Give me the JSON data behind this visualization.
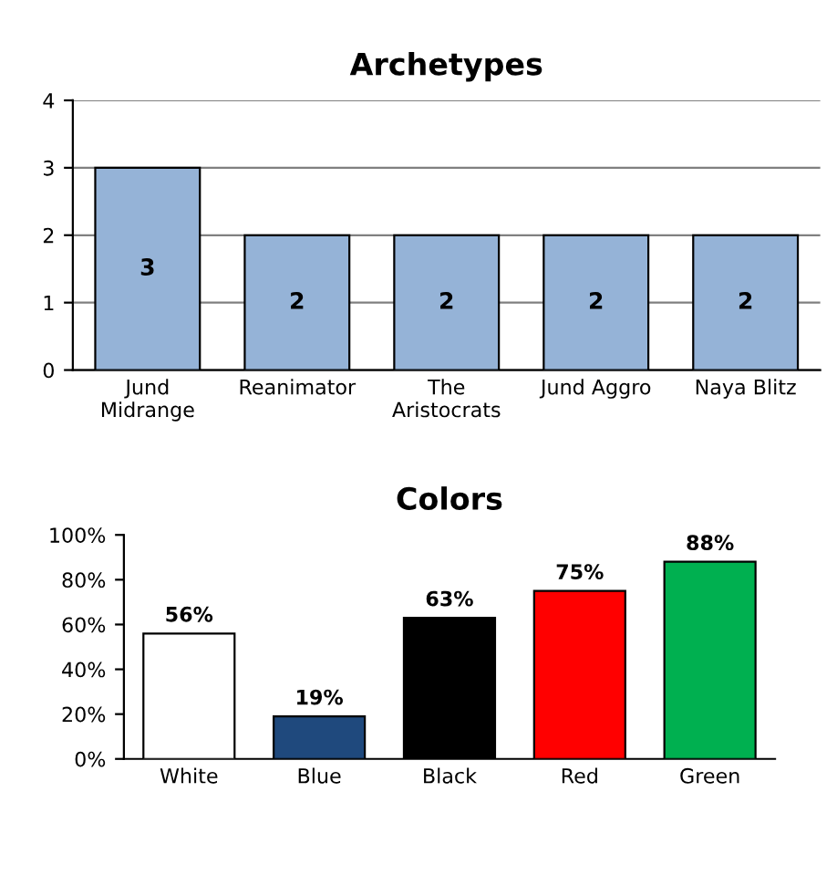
{
  "chart_data": [
    {
      "type": "bar",
      "title": "Archetypes",
      "categories": [
        "Jund\nMidrange",
        "Reanimator",
        "The\nAristocrats",
        "Jund Aggro",
        "Naya Blitz"
      ],
      "values": [
        3,
        2,
        2,
        2,
        2
      ],
      "color": "#95b3d7",
      "ylim": [
        0,
        4
      ],
      "yticks": [
        0,
        1,
        2,
        3,
        4
      ],
      "grid": "y",
      "data_labels": true,
      "legend": false
    },
    {
      "type": "bar",
      "title": "Colors",
      "categories": [
        "White",
        "Blue",
        "Black",
        "Red",
        "Green"
      ],
      "values": [
        56,
        19,
        63,
        75,
        88
      ],
      "value_labels": [
        "56%",
        "19%",
        "63%",
        "75%",
        "88%"
      ],
      "colors": [
        "#ffffff",
        "#1f497d",
        "#000000",
        "#ff0000",
        "#00b050"
      ],
      "ylim": [
        0,
        100
      ],
      "yticks": [
        {
          "value": 0,
          "label": "0%"
        },
        {
          "value": 20,
          "label": "20%"
        },
        {
          "value": 40,
          "label": "40%"
        },
        {
          "value": 60,
          "label": "60%"
        },
        {
          "value": 80,
          "label": "80%"
        },
        {
          "value": 100,
          "label": "100%"
        }
      ],
      "grid": false,
      "legend": false
    }
  ]
}
